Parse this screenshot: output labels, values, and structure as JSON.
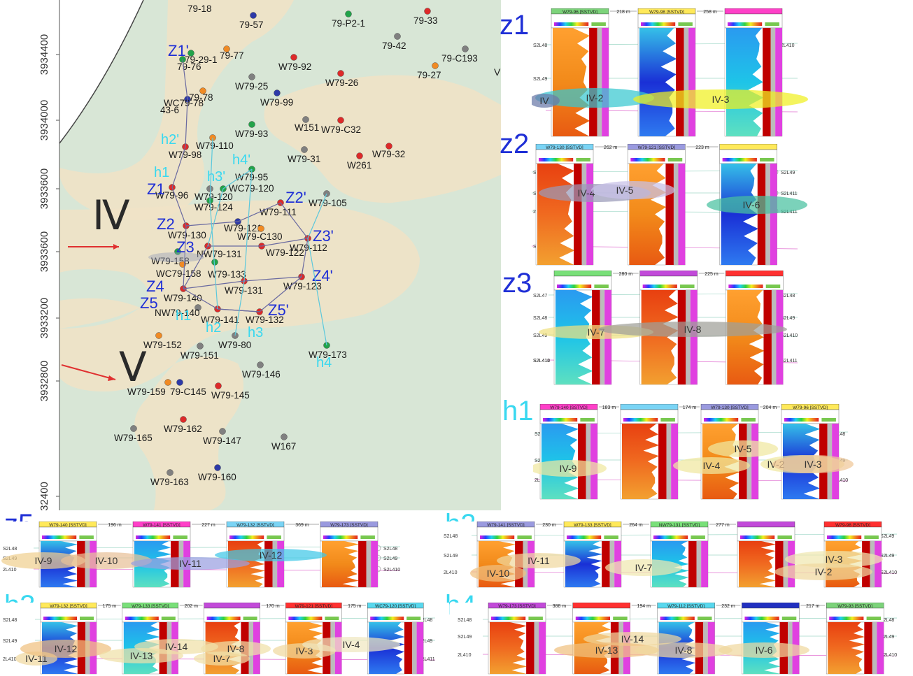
{
  "colors": {
    "map_bg": "#d8e6d6",
    "sand": "#efe2c6",
    "well_red": "#dd2a2a",
    "well_orange": "#f08a24",
    "well_green": "#22a34a",
    "well_blue": "#2e3aa8",
    "well_grey": "#808080",
    "label_blue": "#1f2fd6",
    "label_cyan": "#38d8f0",
    "section_line": "#333333"
  },
  "map": {
    "y_ticks": [
      "3934400",
      "3934000",
      "3933600",
      "3933600",
      "3933200",
      "3932800",
      "32400"
    ],
    "y_ticks_all": [
      "3934400",
      "3934000",
      "3933600",
      "3933600",
      "3933200",
      "3932800",
      "32400"
    ],
    "zone_labels": [
      "Ⅳ",
      "Ⅴ"
    ],
    "wells": [
      {
        "name": "79-18",
        "color": "grey",
        "label_only": true
      },
      {
        "name": "79-57",
        "color": "blue"
      },
      {
        "name": "79-P2-1",
        "color": "green"
      },
      {
        "name": "79-33",
        "color": "red"
      },
      {
        "name": "79-42",
        "color": "grey"
      },
      {
        "name": "79-C193",
        "color": "grey"
      },
      {
        "name": "79-27",
        "color": "orange"
      },
      {
        "name": "79-29-1",
        "color": "green"
      },
      {
        "name": "79-76",
        "color": "green"
      },
      {
        "name": "79-77",
        "color": "orange"
      },
      {
        "name": "W79-92",
        "color": "red"
      },
      {
        "name": "W79-26",
        "color": "red"
      },
      {
        "name": "W79-25",
        "color": "grey"
      },
      {
        "name": "79-78",
        "color": "orange"
      },
      {
        "name": "WC79-78",
        "color": "blue"
      },
      {
        "name": "43-6",
        "color": "grey",
        "label_only": true
      },
      {
        "name": "W79-99",
        "color": "blue"
      },
      {
        "name": "W79-93",
        "color": "green"
      },
      {
        "name": "W151",
        "color": "grey"
      },
      {
        "name": "W79-C32",
        "color": "red"
      },
      {
        "name": "W79-32",
        "color": "red"
      },
      {
        "name": "W79-110",
        "color": "orange"
      },
      {
        "name": "W79-98",
        "color": "red"
      },
      {
        "name": "W79-31",
        "color": "grey"
      },
      {
        "name": "W261",
        "color": "red"
      },
      {
        "name": "W79-95",
        "color": "green"
      },
      {
        "name": "W79-96",
        "color": "red"
      },
      {
        "name": "W79-120",
        "color": "grey"
      },
      {
        "name": "WC79-120",
        "color": "green"
      },
      {
        "name": "W79-124",
        "color": "green"
      },
      {
        "name": "W79-105",
        "color": "grey"
      },
      {
        "name": "W79-111",
        "color": "red"
      },
      {
        "name": "W79-121",
        "color": "blue"
      },
      {
        "name": "W79-130",
        "color": "red"
      },
      {
        "name": "W79-C130",
        "color": "orange"
      },
      {
        "name": "NW79-131",
        "color": "red"
      },
      {
        "name": "W79-122",
        "color": "red"
      },
      {
        "name": "W79-112",
        "color": "red"
      },
      {
        "name": "W79-158",
        "color": "green"
      },
      {
        "name": "WC79-158",
        "color": "orange"
      },
      {
        "name": "W79-133",
        "color": "green"
      },
      {
        "name": "W79-131",
        "color": "red"
      },
      {
        "name": "W79-123",
        "color": "red"
      },
      {
        "name": "W79-140",
        "color": "red"
      },
      {
        "name": "NW79-140",
        "color": "grey"
      },
      {
        "name": "W79-141",
        "color": "red"
      },
      {
        "name": "W79-132",
        "color": "red"
      },
      {
        "name": "W79-152",
        "color": "orange"
      },
      {
        "name": "W79-80",
        "color": "grey"
      },
      {
        "name": "W79-151",
        "color": "grey"
      },
      {
        "name": "W79-173",
        "color": "green"
      },
      {
        "name": "W79-146",
        "color": "grey"
      },
      {
        "name": "W79-159",
        "color": "orange"
      },
      {
        "name": "79-C145",
        "color": "blue"
      },
      {
        "name": "W79-145",
        "color": "red"
      },
      {
        "name": "W79-162",
        "color": "red"
      },
      {
        "name": "W79-165",
        "color": "grey"
      },
      {
        "name": "W79-147",
        "color": "grey"
      },
      {
        "name": "W167",
        "color": "grey"
      },
      {
        "name": "W79-163",
        "color": "grey"
      },
      {
        "name": "W79-160",
        "color": "blue"
      }
    ],
    "section_labels": [
      {
        "text": "Z1'",
        "kind": "z"
      },
      {
        "text": "h2'",
        "kind": "h"
      },
      {
        "text": "h1",
        "kind": "h"
      },
      {
        "text": "Z1",
        "kind": "z"
      },
      {
        "text": "h3'",
        "kind": "h"
      },
      {
        "text": "h4'",
        "kind": "h"
      },
      {
        "text": "Z2'",
        "kind": "z"
      },
      {
        "text": "Z2",
        "kind": "z"
      },
      {
        "text": "Z3'",
        "kind": "z"
      },
      {
        "text": "Z3",
        "kind": "z"
      },
      {
        "text": "Z4'",
        "kind": "z"
      },
      {
        "text": "Z4",
        "kind": "z"
      },
      {
        "text": "Z5",
        "kind": "z"
      },
      {
        "text": "h1",
        "kind": "h"
      },
      {
        "text": "Z5'",
        "kind": "z"
      },
      {
        "text": "h2",
        "kind": "h"
      },
      {
        "text": "h3",
        "kind": "h"
      },
      {
        "text": "h4",
        "kind": "h"
      }
    ],
    "stray_label": "V"
  },
  "panels": [
    {
      "id": "z1",
      "label": "z1",
      "kind": "z",
      "wells": [
        "W79-96 [SSTVD]",
        "W79-98 [SSTVD]",
        ""
      ],
      "distances": [
        "218 m",
        "258 m",
        "21"
      ],
      "markers": [
        "S2L48",
        "S2L49",
        "2L410"
      ],
      "bodies": [
        "IV-2",
        "IV-3",
        "IV"
      ]
    },
    {
      "id": "z2",
      "label": "z2",
      "kind": "z",
      "wells": [
        "W79-130 [SSTVD]",
        "W79-121 [SSTVD]",
        ""
      ],
      "distances": [
        "262 m",
        "223 m"
      ],
      "markers": [
        "S2L48",
        "S2L49",
        "2L410",
        "S2L48",
        "S2L49",
        "S2L411",
        "S2L411"
      ],
      "bodies": [
        "IV-4",
        "IV-5",
        "IV-6"
      ]
    },
    {
      "id": "z3",
      "label": "z3",
      "kind": "z",
      "wells": [
        "",
        "",
        ""
      ],
      "distances": [
        "280 m",
        "225 m"
      ],
      "markers": [
        "S2L47",
        "S2L48",
        "S2L49",
        "S2L410",
        "S2L411",
        "S2L48",
        "S2L49",
        "S2L410",
        "S2L411"
      ],
      "bodies": [
        "IV-7",
        "IV-8"
      ]
    },
    {
      "id": "h1",
      "label": "h1",
      "kind": "h",
      "wells": [
        "W79-140 [SSTVD]",
        "",
        "W79-130 [SSTVD]",
        "W79-96 [SSTVD]"
      ],
      "distances": [
        "183 m",
        "174 m",
        "204 m"
      ],
      "markers": [
        "S2L48",
        "S2L49",
        "2L410",
        "S2L48",
        "S2L49",
        "S2L410"
      ],
      "bodies": [
        "IV-9",
        "IV-4",
        "IV-5",
        "IV-2",
        "IV-3"
      ]
    },
    {
      "id": "z5",
      "label": "z5",
      "kind": "z",
      "wells": [
        "W79-140 [SSTVD]",
        "W79-141 [SSTVD]",
        "W79-132 [SSTVD]",
        "W79-173 [SSTVD]"
      ],
      "distances": [
        "196 m",
        "227 m",
        "369 m"
      ],
      "markers": [
        "S2L48",
        "S2L49",
        "2L410",
        "S2L48",
        "S2L49",
        "S2L410"
      ],
      "bodies": [
        "IV-9",
        "IV-10",
        "IV-11",
        "IV-12"
      ]
    },
    {
      "id": "h2",
      "label": "h2",
      "kind": "h",
      "wells": [
        "W79-141 [SSTVD]",
        "W79-133 [SSTVD]",
        "NW79-131 [SSTVD]",
        "",
        "W79-98 [SSTVD]"
      ],
      "distances": [
        "230 m",
        "264 m",
        "277 m"
      ],
      "markers": [
        "S2L48",
        "S2L49",
        "2L410",
        "S2L49",
        "S2L49",
        "S2L410"
      ],
      "bodies": [
        "IV-10",
        "IV-11",
        "IV-7",
        "IV-3",
        "IV-2"
      ]
    },
    {
      "id": "h3",
      "label": "h3",
      "kind": "h",
      "wells": [
        "W79-132 [SSTVD]",
        "W79-133 [SSTVD]",
        "",
        "W79-121 [SSTVD]",
        "WC79-120 [SSTVD]"
      ],
      "distances": [
        "175 m",
        "202 m",
        "170 m",
        "175 m"
      ],
      "markers": [
        "S2L48",
        "S2L49",
        "2L410",
        "S2L48",
        "S2L49",
        "S2L411"
      ],
      "bodies": [
        "IV-11",
        "IV-12",
        "IV-13",
        "IV-14",
        "IV-7",
        "IV-8",
        "IV-3",
        "IV-4"
      ]
    },
    {
      "id": "h4",
      "label": "h4",
      "kind": "h",
      "wells": [
        "W79-173 [SSTVD]",
        "",
        "W79-112 [SSTVD]",
        "",
        "W79-93 [SSTVD]"
      ],
      "distances": [
        "388 m",
        "194 m",
        "232 m",
        "217 m"
      ],
      "markers": [
        "S2L48",
        "S2L49",
        "2L410",
        "S2L48",
        "S2L49",
        "S2L410"
      ],
      "bodies": [
        "IV-14",
        "IV-13",
        "IV-8",
        "IV-6"
      ]
    }
  ]
}
